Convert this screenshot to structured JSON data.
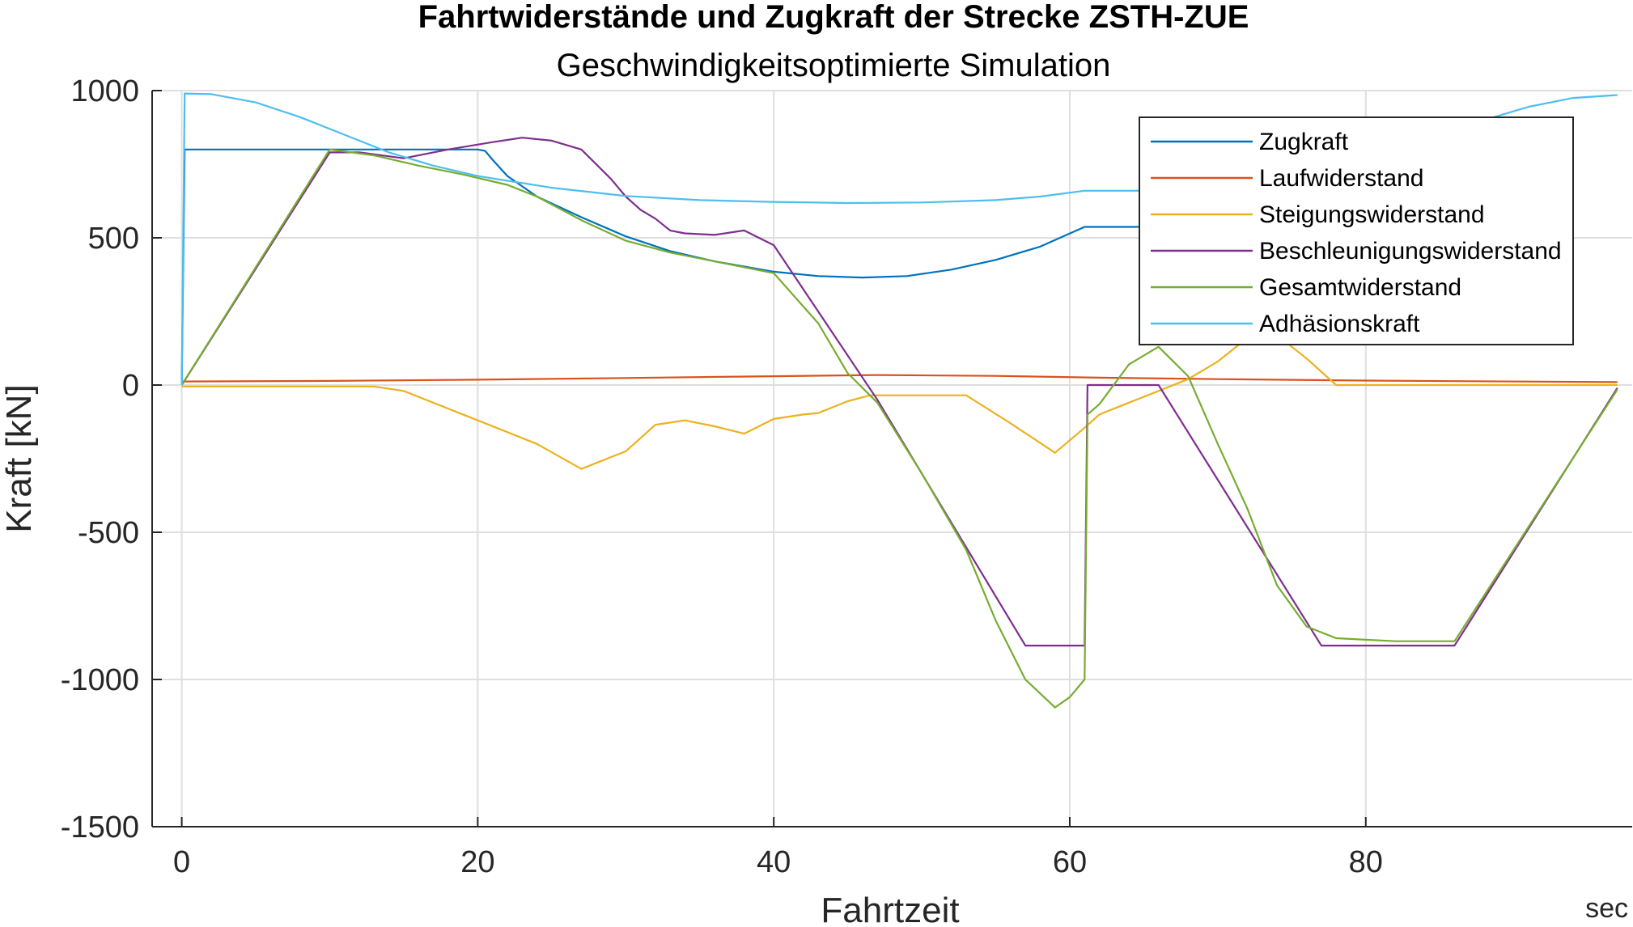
{
  "chart_data": {
    "type": "line",
    "title": "Fahrtwiderstände und Zugkraft der Strecke ZSTH-ZUE",
    "subtitle": "Geschwindigkeitsoptimierte Simulation",
    "xlabel": "Fahrtzeit",
    "xunit": "sec",
    "ylabel": "Kraft [kN]",
    "xlim": [
      -2,
      98
    ],
    "ylim": [
      -1500,
      1000
    ],
    "xticks": [
      0,
      20,
      40,
      60,
      80
    ],
    "yticks": [
      1000,
      500,
      0,
      -500,
      -1000,
      -1500
    ],
    "grid": true,
    "legend_position": "top-right",
    "series": [
      {
        "name": "Zugkraft",
        "color": "#0072BD",
        "x": [
          0,
          0.2,
          20,
          20.5,
          21,
          22,
          24,
          27,
          30,
          33,
          36,
          40,
          43,
          46,
          49,
          52,
          55,
          58,
          61,
          65,
          68
        ],
        "y": [
          0,
          800,
          800,
          795,
          765,
          710,
          640,
          570,
          505,
          455,
          420,
          385,
          370,
          365,
          370,
          392,
          425,
          470,
          537,
          537,
          537
        ]
      },
      {
        "name": "Laufwiderstand",
        "color": "#D95319",
        "x": [
          0,
          10,
          20,
          30,
          40,
          47,
          55,
          62,
          70,
          80,
          97
        ],
        "y": [
          12,
          14,
          18,
          24,
          30,
          34,
          31,
          25,
          20,
          15,
          10
        ]
      },
      {
        "name": "Steigungswiderstand",
        "color": "#EDB120",
        "x": [
          0,
          13,
          15,
          20,
          24,
          27,
          30,
          32,
          34,
          36,
          38,
          40,
          42,
          43,
          45,
          46.5,
          49,
          53,
          56,
          59,
          61,
          62,
          64,
          66,
          68,
          70,
          72,
          74,
          76,
          78,
          85,
          97
        ],
        "y": [
          -5,
          -5,
          -20,
          -120,
          -200,
          -285,
          -225,
          -135,
          -120,
          -140,
          -165,
          -115,
          -100,
          -95,
          -55,
          -35,
          -35,
          -35,
          -130,
          -230,
          -145,
          -100,
          -60,
          -20,
          20,
          80,
          160,
          170,
          90,
          0,
          0,
          0
        ]
      },
      {
        "name": "Beschleunigungswiderstand",
        "color": "#7E2F8E",
        "x": [
          0,
          10,
          12,
          15,
          18,
          21,
          23,
          25,
          27,
          29,
          30,
          31,
          32,
          33,
          34,
          36,
          38,
          40,
          47,
          57,
          61,
          61.2,
          66,
          77,
          86,
          97
        ],
        "y": [
          0,
          790,
          790,
          770,
          800,
          825,
          840,
          830,
          800,
          700,
          640,
          595,
          565,
          525,
          515,
          510,
          525,
          475,
          -50,
          -885,
          -885,
          0,
          0,
          -885,
          -885,
          -10
        ]
      },
      {
        "name": "Gesamtwiderstand",
        "color": "#77AC30",
        "x": [
          0,
          10,
          13,
          16,
          19,
          22,
          24,
          27,
          30,
          33,
          36,
          40,
          43,
          45,
          47,
          50,
          53,
          55,
          57,
          59,
          60,
          61,
          61.2,
          62,
          64,
          66,
          68,
          70,
          72,
          74,
          76,
          78,
          82,
          86,
          97
        ],
        "y": [
          0,
          800,
          780,
          745,
          715,
          680,
          640,
          560,
          490,
          450,
          420,
          380,
          210,
          40,
          -60,
          -300,
          -560,
          -800,
          -1000,
          -1095,
          -1060,
          -1000,
          -100,
          -65,
          70,
          130,
          30,
          -200,
          -420,
          -680,
          -820,
          -860,
          -870,
          -870,
          -15
        ]
      },
      {
        "name": "Adhäsionskraft",
        "color": "#4DBEEE",
        "x": [
          0,
          0.2,
          2,
          5,
          8,
          11,
          14,
          17,
          20,
          25,
          30,
          35,
          40,
          45,
          50,
          55,
          58,
          61,
          68,
          70,
          75,
          80,
          84,
          88,
          91,
          94,
          97
        ],
        "y": [
          0,
          990,
          988,
          960,
          910,
          850,
          790,
          745,
          710,
          670,
          642,
          628,
          622,
          618,
          620,
          628,
          640,
          660,
          660,
          660,
          710,
          780,
          840,
          900,
          945,
          975,
          985
        ]
      }
    ]
  }
}
